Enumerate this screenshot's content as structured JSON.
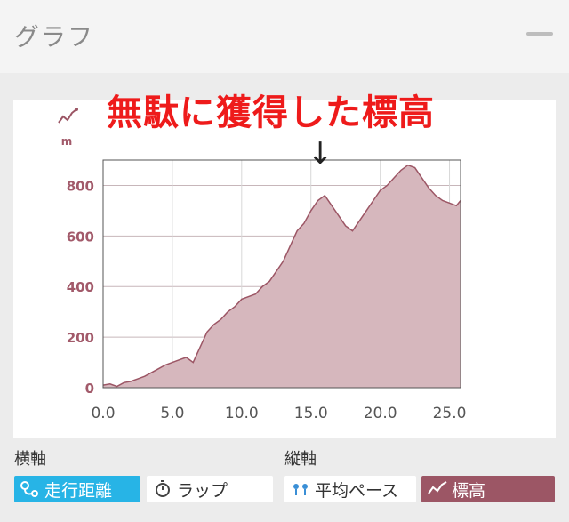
{
  "header": {
    "title": "グラフ"
  },
  "annotation": {
    "text": "無駄に獲得した標高",
    "arrow": "↓"
  },
  "colors": {
    "fill": "#d6b7bd",
    "line": "#9c5665",
    "axis": "#a25a6a",
    "grid": "#c7b6ba",
    "accent_blue": "#27b4e6",
    "annotation_red": "#ee1b1b"
  },
  "chart_data": {
    "type": "area",
    "ylabel": "m",
    "xlim": [
      0,
      25.8
    ],
    "ylim": [
      0,
      900
    ],
    "xticks": [
      "0.0",
      "5.0",
      "10.0",
      "15.0",
      "20.0",
      "25.0"
    ],
    "xtick_values": [
      0,
      5,
      10,
      15,
      20,
      25
    ],
    "yticks": [
      "0",
      "200",
      "400",
      "600",
      "800"
    ],
    "ytick_values": [
      0,
      200,
      400,
      600,
      800
    ],
    "grid": true,
    "x": [
      0,
      0.5,
      1.0,
      1.5,
      2.0,
      2.5,
      3.0,
      3.5,
      4.0,
      4.5,
      5.0,
      5.5,
      6.0,
      6.5,
      7.0,
      7.5,
      8.0,
      8.5,
      9.0,
      9.5,
      10.0,
      10.5,
      11.0,
      11.5,
      12.0,
      12.5,
      13.0,
      13.5,
      14.0,
      14.5,
      15.0,
      15.5,
      16.0,
      16.5,
      17.0,
      17.5,
      18.0,
      18.5,
      19.0,
      19.5,
      20.0,
      20.5,
      21.0,
      21.5,
      22.0,
      22.5,
      23.0,
      23.5,
      24.0,
      24.5,
      25.0,
      25.5,
      25.8
    ],
    "y": [
      10,
      15,
      5,
      20,
      25,
      35,
      45,
      60,
      75,
      90,
      100,
      110,
      120,
      100,
      160,
      220,
      250,
      270,
      300,
      320,
      350,
      360,
      370,
      400,
      420,
      460,
      500,
      560,
      620,
      650,
      700,
      740,
      760,
      720,
      680,
      640,
      620,
      660,
      700,
      740,
      780,
      800,
      830,
      860,
      880,
      870,
      830,
      790,
      760,
      740,
      730,
      720,
      740
    ]
  },
  "horizontal_axis": {
    "label": "横軸",
    "options": [
      {
        "label": "走行距離",
        "icon": "route-icon",
        "active": true
      },
      {
        "label": "ラップ",
        "icon": "stopwatch-icon",
        "active": false
      }
    ]
  },
  "vertical_axis": {
    "label": "縦軸",
    "options": [
      {
        "label": "平均ペース",
        "icon": "pace-icon",
        "active": false
      },
      {
        "label": "標高",
        "icon": "elevation-icon",
        "active": true
      }
    ]
  }
}
